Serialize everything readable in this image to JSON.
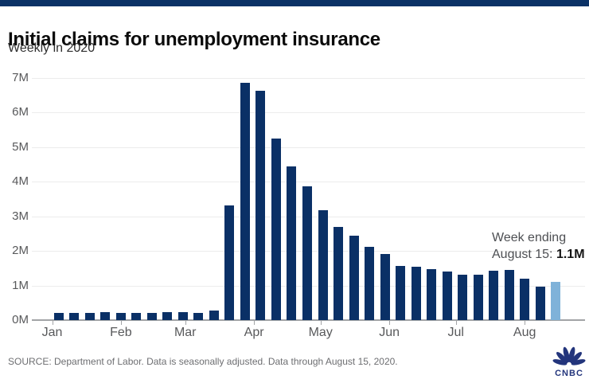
{
  "header": {
    "title": "Initial claims for unemployment insurance",
    "subtitle": "Weekly in 2020"
  },
  "annotation": {
    "line1": "Week ending",
    "line2_prefix": "August 15: ",
    "line2_value": "1.1M"
  },
  "footer": {
    "source": "SOURCE: Department of Labor. Data is seasonally adjusted. Data through August 15, 2020.",
    "logo_text": "CNBC"
  },
  "colors": {
    "brand_strip": "#0b3266",
    "bar": "#0a3066",
    "bar_highlight": "#7fb2d9",
    "grid": "#ececec",
    "axis": "#a2a4a6",
    "axis_label": "#58595b",
    "logo": "#23357c"
  },
  "chart_data": {
    "type": "bar",
    "title": "Initial claims for unemployment insurance",
    "subtitle": "Weekly in 2020",
    "x_unit": "week ending, 2020",
    "y_unit": "millions of claims",
    "weeks": [
      "Jan 4",
      "Jan 11",
      "Jan 18",
      "Jan 25",
      "Feb 1",
      "Feb 8",
      "Feb 15",
      "Feb 22",
      "Feb 29",
      "Mar 7",
      "Mar 14",
      "Mar 21",
      "Mar 28",
      "Apr 4",
      "Apr 11",
      "Apr 18",
      "Apr 25",
      "May 2",
      "May 9",
      "May 16",
      "May 23",
      "May 30",
      "Jun 6",
      "Jun 13",
      "Jun 20",
      "Jun 27",
      "Jul 4",
      "Jul 11",
      "Jul 18",
      "Jul 25",
      "Aug 1",
      "Aug 8",
      "Aug 15"
    ],
    "values_millions": [
      0.21,
      0.2,
      0.21,
      0.22,
      0.2,
      0.2,
      0.21,
      0.22,
      0.22,
      0.21,
      0.28,
      3.31,
      6.87,
      6.62,
      5.24,
      4.44,
      3.87,
      3.18,
      2.69,
      2.45,
      2.12,
      1.9,
      1.57,
      1.54,
      1.48,
      1.41,
      1.31,
      1.31,
      1.42,
      1.44,
      1.19,
      0.97,
      1.11
    ],
    "highlighted_week": "Aug 15",
    "highlighted_value_label": "1.1M",
    "y_tick_labels": [
      "0M",
      "1M",
      "2M",
      "3M",
      "4M",
      "5M",
      "6M",
      "7M"
    ],
    "x_tick_labels": [
      "Jan",
      "Feb",
      "Mar",
      "Apr",
      "May",
      "Jun",
      "Jul",
      "Aug"
    ],
    "ylim": [
      0,
      7
    ],
    "grid": "horizontal",
    "legend": "none"
  }
}
